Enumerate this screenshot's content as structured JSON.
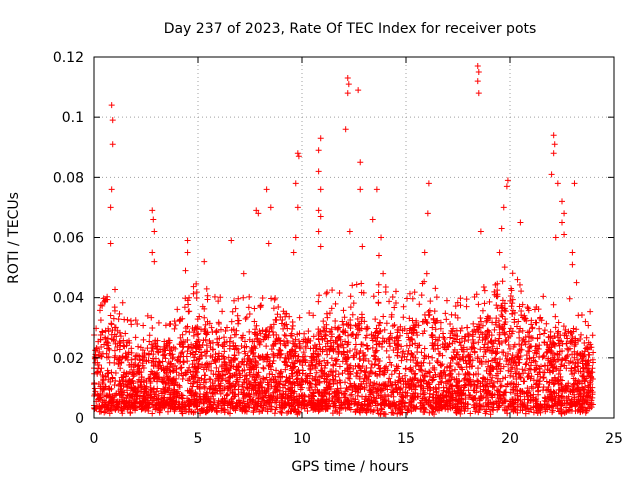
{
  "chart_data": {
    "type": "scatter",
    "title": "Day 237 of 2023, Rate Of TEC Index for receiver pots",
    "xlabel": "GPS time / hours",
    "ylabel": "ROTI / TECUs",
    "xlim": [
      0,
      25
    ],
    "ylim": [
      0,
      0.12
    ],
    "xticks": [
      0,
      5,
      10,
      15,
      20,
      25
    ],
    "xtick_labels": [
      "0",
      "5",
      "10",
      "15",
      "20",
      "25"
    ],
    "yticks": [
      0,
      0.02,
      0.04,
      0.06,
      0.08,
      0.1,
      0.12
    ],
    "ytick_labels": [
      "0",
      "0.02",
      "0.04",
      "0.06",
      "0.08",
      "0.1",
      "0.12"
    ],
    "grid": true,
    "marker": "+",
    "color": "#ff0000",
    "x_range_of_data": [
      0,
      24
    ],
    "notable_points": [
      {
        "x": 0.85,
        "y": 0.104
      },
      {
        "x": 0.9,
        "y": 0.099
      },
      {
        "x": 0.9,
        "y": 0.091
      },
      {
        "x": 0.85,
        "y": 0.076
      },
      {
        "x": 0.8,
        "y": 0.07
      },
      {
        "x": 0.8,
        "y": 0.058
      },
      {
        "x": 2.8,
        "y": 0.069
      },
      {
        "x": 2.85,
        "y": 0.066
      },
      {
        "x": 2.9,
        "y": 0.062
      },
      {
        "x": 2.8,
        "y": 0.055
      },
      {
        "x": 2.9,
        "y": 0.052
      },
      {
        "x": 4.5,
        "y": 0.059
      },
      {
        "x": 4.5,
        "y": 0.055
      },
      {
        "x": 4.4,
        "y": 0.049
      },
      {
        "x": 5.3,
        "y": 0.052
      },
      {
        "x": 6.6,
        "y": 0.059
      },
      {
        "x": 7.2,
        "y": 0.048
      },
      {
        "x": 7.8,
        "y": 0.069
      },
      {
        "x": 7.9,
        "y": 0.068
      },
      {
        "x": 8.3,
        "y": 0.076
      },
      {
        "x": 8.5,
        "y": 0.07
      },
      {
        "x": 8.4,
        "y": 0.058
      },
      {
        "x": 9.8,
        "y": 0.088
      },
      {
        "x": 9.85,
        "y": 0.087
      },
      {
        "x": 9.7,
        "y": 0.078
      },
      {
        "x": 9.8,
        "y": 0.07
      },
      {
        "x": 9.7,
        "y": 0.06
      },
      {
        "x": 9.6,
        "y": 0.055
      },
      {
        "x": 10.9,
        "y": 0.093
      },
      {
        "x": 10.8,
        "y": 0.089
      },
      {
        "x": 10.8,
        "y": 0.082
      },
      {
        "x": 10.9,
        "y": 0.076
      },
      {
        "x": 10.8,
        "y": 0.069
      },
      {
        "x": 10.9,
        "y": 0.067
      },
      {
        "x": 10.8,
        "y": 0.062
      },
      {
        "x": 10.9,
        "y": 0.057
      },
      {
        "x": 12.2,
        "y": 0.113
      },
      {
        "x": 12.25,
        "y": 0.111
      },
      {
        "x": 12.2,
        "y": 0.108
      },
      {
        "x": 12.7,
        "y": 0.109
      },
      {
        "x": 12.1,
        "y": 0.096
      },
      {
        "x": 12.8,
        "y": 0.085
      },
      {
        "x": 12.8,
        "y": 0.076
      },
      {
        "x": 12.3,
        "y": 0.062
      },
      {
        "x": 12.9,
        "y": 0.057
      },
      {
        "x": 13.4,
        "y": 0.066
      },
      {
        "x": 13.6,
        "y": 0.076
      },
      {
        "x": 13.8,
        "y": 0.06
      },
      {
        "x": 13.7,
        "y": 0.054
      },
      {
        "x": 13.9,
        "y": 0.048
      },
      {
        "x": 16.1,
        "y": 0.078
      },
      {
        "x": 16.05,
        "y": 0.068
      },
      {
        "x": 15.9,
        "y": 0.055
      },
      {
        "x": 16.0,
        "y": 0.048
      },
      {
        "x": 18.45,
        "y": 0.117
      },
      {
        "x": 18.5,
        "y": 0.115
      },
      {
        "x": 18.45,
        "y": 0.112
      },
      {
        "x": 18.5,
        "y": 0.108
      },
      {
        "x": 18.6,
        "y": 0.062
      },
      {
        "x": 19.9,
        "y": 0.079
      },
      {
        "x": 19.85,
        "y": 0.077
      },
      {
        "x": 19.7,
        "y": 0.07
      },
      {
        "x": 19.6,
        "y": 0.063
      },
      {
        "x": 20.5,
        "y": 0.065
      },
      {
        "x": 19.5,
        "y": 0.055
      },
      {
        "x": 22.1,
        "y": 0.094
      },
      {
        "x": 22.15,
        "y": 0.091
      },
      {
        "x": 22.1,
        "y": 0.088
      },
      {
        "x": 22.0,
        "y": 0.081
      },
      {
        "x": 22.3,
        "y": 0.078
      },
      {
        "x": 22.5,
        "y": 0.072
      },
      {
        "x": 22.6,
        "y": 0.068
      },
      {
        "x": 22.5,
        "y": 0.065
      },
      {
        "x": 22.6,
        "y": 0.061
      },
      {
        "x": 22.2,
        "y": 0.06
      },
      {
        "x": 23.1,
        "y": 0.078
      },
      {
        "x": 23.0,
        "y": 0.055
      },
      {
        "x": 23.0,
        "y": 0.051
      },
      {
        "x": 23.2,
        "y": 0.045
      }
    ],
    "dense_band": {
      "baseline_range_approx": [
        0.004,
        0.03
      ],
      "activity_profile_hours_to_max": [
        [
          0,
          0.028
        ],
        [
          1,
          0.032
        ],
        [
          2,
          0.022
        ],
        [
          3,
          0.026
        ],
        [
          4,
          0.025
        ],
        [
          5,
          0.034
        ],
        [
          6,
          0.03
        ],
        [
          7,
          0.028
        ],
        [
          8,
          0.03
        ],
        [
          9,
          0.033
        ],
        [
          10,
          0.028
        ],
        [
          11,
          0.03
        ],
        [
          12,
          0.032
        ],
        [
          13,
          0.033
        ],
        [
          14,
          0.032
        ],
        [
          15,
          0.03
        ],
        [
          16,
          0.035
        ],
        [
          17,
          0.028
        ],
        [
          18,
          0.03
        ],
        [
          19,
          0.033
        ],
        [
          20,
          0.04
        ],
        [
          21,
          0.03
        ],
        [
          22,
          0.028
        ],
        [
          23,
          0.028
        ],
        [
          24,
          0.024
        ]
      ]
    }
  }
}
